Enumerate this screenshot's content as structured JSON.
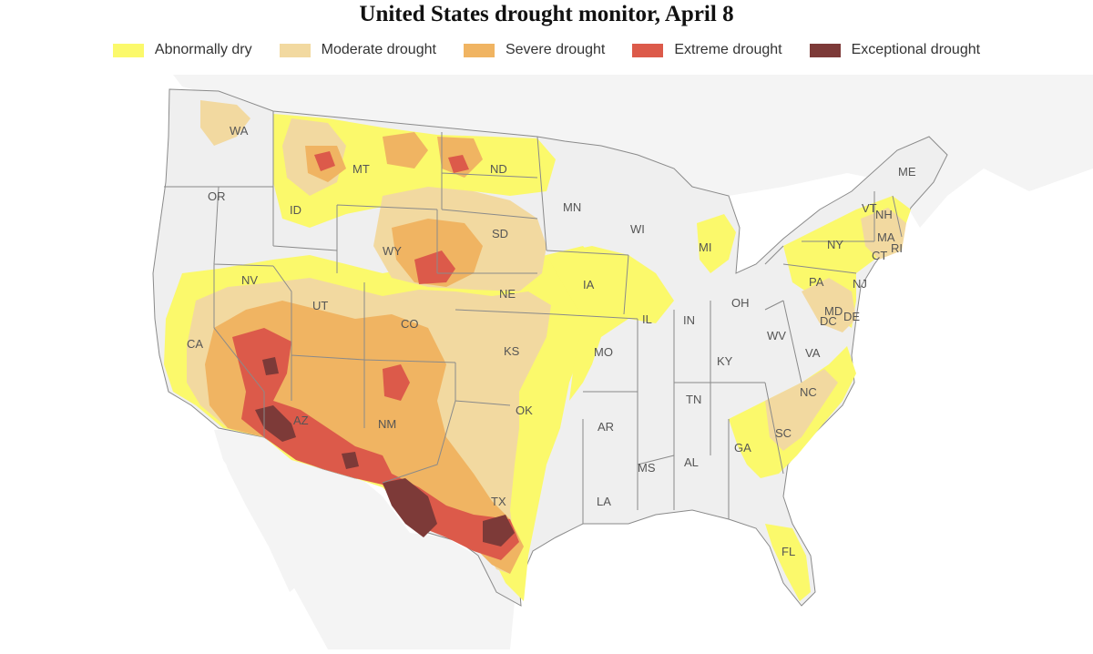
{
  "title": "United States drought monitor, April 8",
  "legend": [
    {
      "label": "Abnormally dry",
      "color": "#fbf96b"
    },
    {
      "label": "Moderate drought",
      "color": "#f2d9a0"
    },
    {
      "label": "Severe drought",
      "color": "#f0b462"
    },
    {
      "label": "Extreme drought",
      "color": "#dc5a4a"
    },
    {
      "label": "Exceptional drought",
      "color": "#7d3a38"
    }
  ],
  "colors": {
    "land": "#efefef",
    "ocean": "#ffffff",
    "neighbors": "#f4f4f4",
    "borders": "#8a8a8a"
  },
  "states": [
    "WA",
    "OR",
    "CA",
    "ID",
    "NV",
    "MT",
    "WY",
    "UT",
    "AZ",
    "CO",
    "NM",
    "ND",
    "SD",
    "NE",
    "KS",
    "OK",
    "TX",
    "MN",
    "IA",
    "MO",
    "AR",
    "LA",
    "WI",
    "IL",
    "MI",
    "IN",
    "OH",
    "KY",
    "TN",
    "MS",
    "AL",
    "GA",
    "FL",
    "SC",
    "NC",
    "VA",
    "WV",
    "PA",
    "NY",
    "VT",
    "NH",
    "ME",
    "MA",
    "CT",
    "RI",
    "NJ",
    "DE",
    "MD",
    "DC"
  ]
}
